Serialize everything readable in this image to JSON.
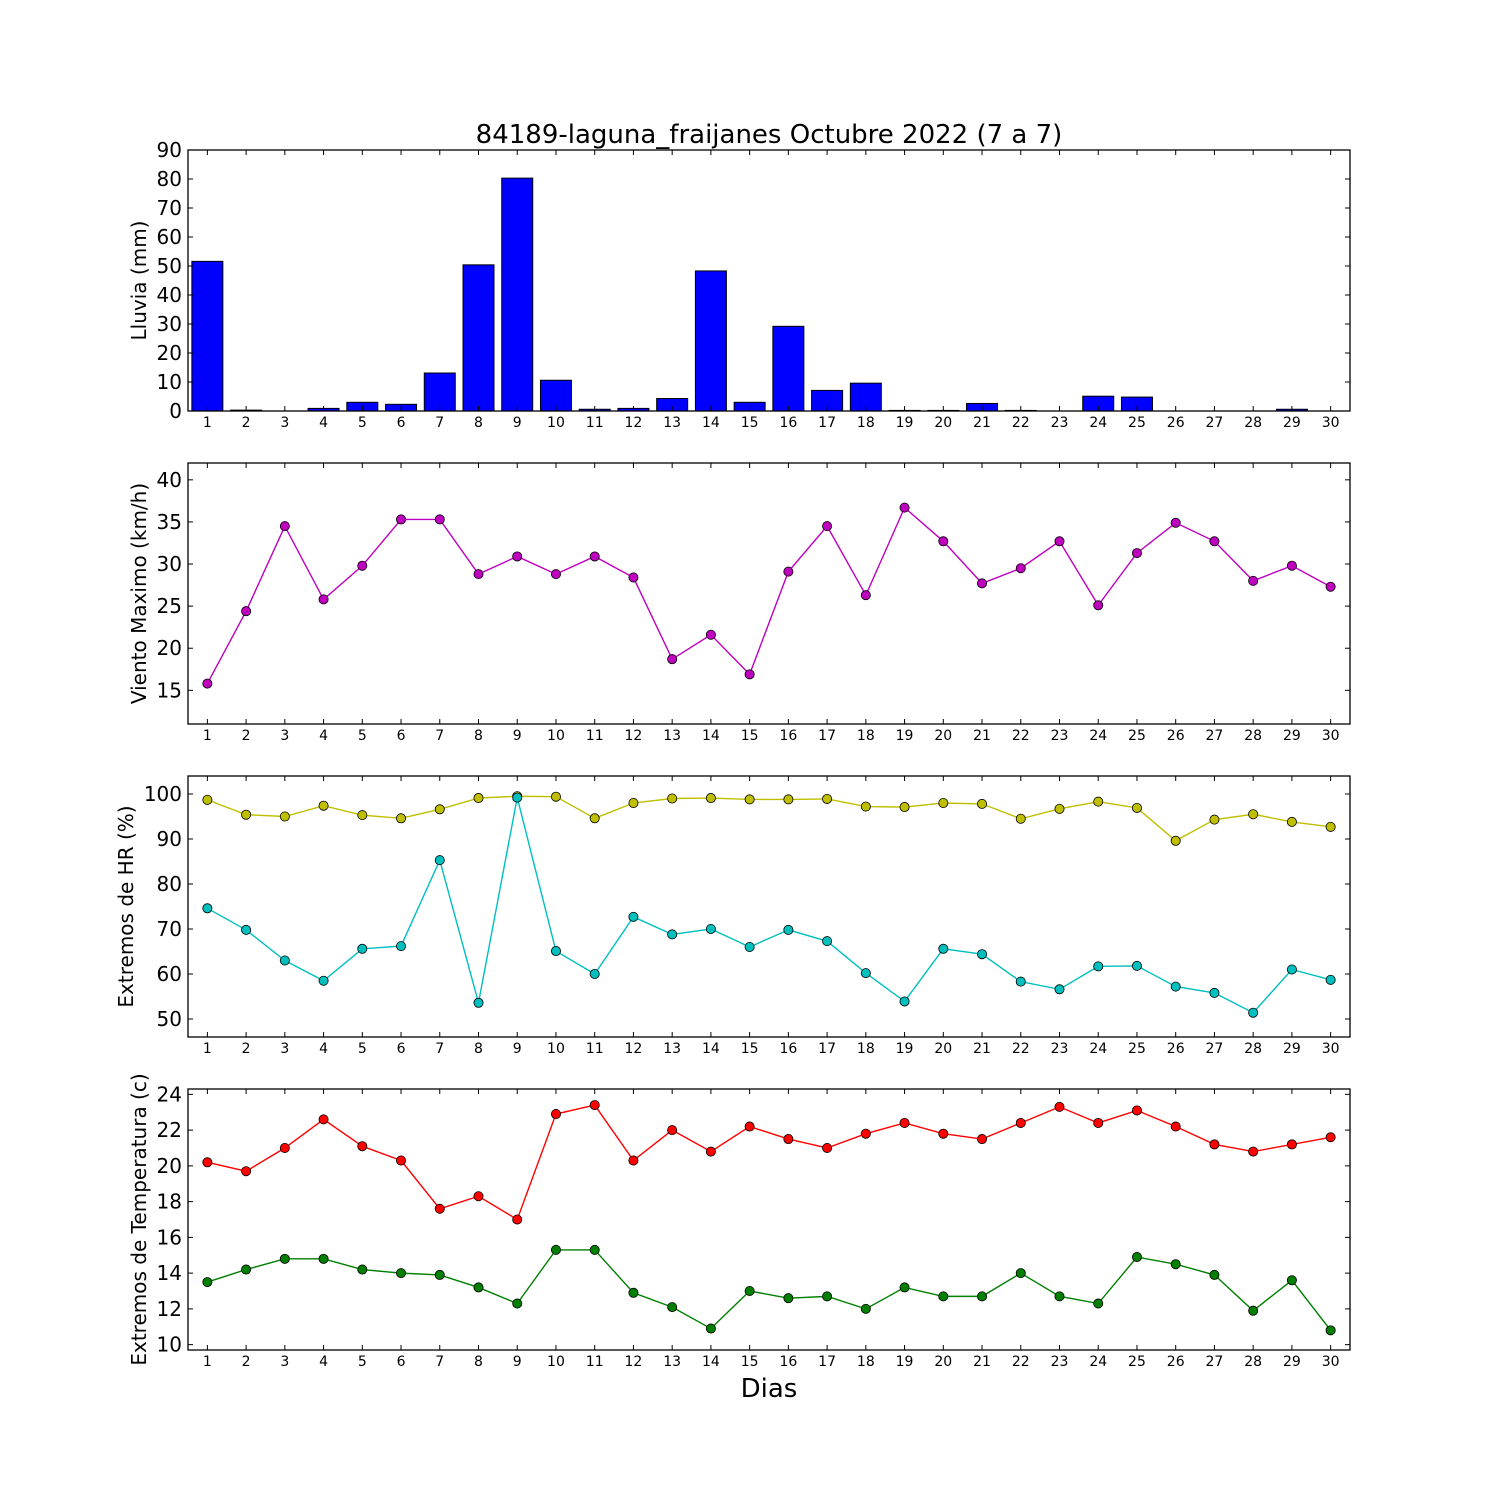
{
  "chart_data": {
    "type": "multi-panel",
    "title": "84189-laguna_fraijanes Octubre 2022  (7 a 7)",
    "xlabel": "Dias",
    "x": [
      1,
      2,
      3,
      4,
      5,
      6,
      7,
      8,
      9,
      10,
      11,
      12,
      13,
      14,
      15,
      16,
      17,
      18,
      19,
      20,
      21,
      22,
      23,
      24,
      25,
      26,
      27,
      28,
      29,
      30
    ],
    "panels": [
      {
        "type": "bar",
        "ylabel": "Lluvia (mm)",
        "ylim": [
          0,
          90
        ],
        "yticks": [
          0,
          10,
          20,
          30,
          40,
          50,
          60,
          70,
          80,
          90
        ],
        "series": [
          {
            "color": "#0000ff",
            "values": [
              51.6,
              0.3,
              0.0,
              0.9,
              3.0,
              2.3,
              13.1,
              50.4,
              80.3,
              10.6,
              0.6,
              0.9,
              4.3,
              48.3,
              3.0,
              29.2,
              7.1,
              9.6,
              0.2,
              0.2,
              2.6,
              0.2,
              0.0,
              5.1,
              4.8,
              0.0,
              0.0,
              0.0,
              0.6,
              0.0
            ]
          }
        ]
      },
      {
        "type": "line",
        "ylabel": "Viento Maximo (km/h)",
        "ylim": [
          11,
          42
        ],
        "yticks": [
          15,
          20,
          25,
          30,
          35,
          40
        ],
        "series": [
          {
            "color": "#bf00bf",
            "values": [
              15.8,
              24.4,
              34.5,
              25.8,
              29.8,
              35.3,
              35.3,
              28.8,
              30.9,
              28.8,
              30.9,
              28.4,
              18.7,
              21.6,
              16.9,
              29.1,
              34.5,
              26.3,
              36.7,
              32.7,
              27.7,
              29.5,
              32.7,
              25.1,
              31.3,
              34.9,
              32.7,
              28.0,
              29.8,
              27.3
            ]
          }
        ]
      },
      {
        "type": "line",
        "ylabel": "Extremos de HR (%)",
        "ylim": [
          46,
          104
        ],
        "yticks": [
          50,
          60,
          70,
          80,
          90,
          100
        ],
        "series": [
          {
            "color": "#bfbf00",
            "values": [
              98.7,
              95.4,
              95.0,
              97.4,
              95.3,
              94.6,
              96.6,
              99.1,
              99.5,
              99.4,
              94.6,
              98.0,
              99.0,
              99.1,
              98.8,
              98.8,
              98.9,
              97.2,
              97.1,
              98.0,
              97.8,
              94.5,
              96.7,
              98.3,
              96.9,
              89.6,
              94.3,
              95.5,
              93.8,
              92.7
            ]
          },
          {
            "color": "#00bfbf",
            "values": [
              74.6,
              69.8,
              63.0,
              58.5,
              65.6,
              66.2,
              85.3,
              53.6,
              99.2,
              65.1,
              60.0,
              72.7,
              68.8,
              70.0,
              66.0,
              69.8,
              67.3,
              60.2,
              53.9,
              65.6,
              64.4,
              58.3,
              56.6,
              61.7,
              61.8,
              57.2,
              55.8,
              51.4,
              61.0,
              58.7
            ]
          }
        ]
      },
      {
        "type": "line",
        "ylabel": "Extremos de Temperatura (c)",
        "ylim": [
          9.7,
          24.3
        ],
        "yticks": [
          10,
          12,
          14,
          16,
          18,
          20,
          22,
          24
        ],
        "series": [
          {
            "color": "#ff0000",
            "values": [
              20.2,
              19.7,
              21.0,
              22.6,
              21.1,
              20.3,
              17.6,
              18.3,
              17.0,
              22.9,
              23.4,
              20.3,
              22.0,
              20.8,
              22.2,
              21.5,
              21.0,
              21.8,
              22.4,
              21.8,
              21.5,
              22.4,
              23.3,
              22.4,
              23.1,
              22.2,
              21.2,
              20.8,
              21.2,
              21.6
            ]
          },
          {
            "color": "#007f00",
            "values": [
              13.5,
              14.2,
              14.8,
              14.8,
              14.2,
              14.0,
              13.9,
              13.2,
              12.3,
              15.3,
              15.3,
              12.9,
              12.1,
              10.9,
              13.0,
              12.6,
              12.7,
              12.0,
              13.2,
              12.7,
              12.7,
              14.0,
              12.7,
              12.3,
              14.9,
              14.5,
              13.9,
              11.9,
              13.6,
              10.8
            ]
          }
        ]
      }
    ]
  }
}
